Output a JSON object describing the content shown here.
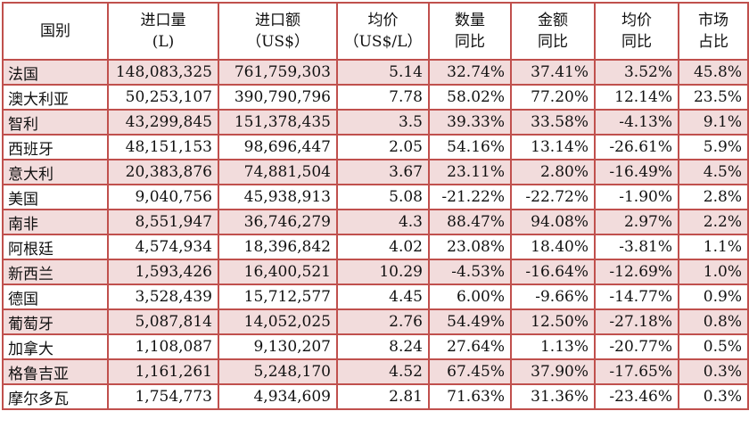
{
  "headers": [
    {
      "line1": "国别",
      "line2": ""
    },
    {
      "line1": "进口量",
      "line2": "(L)"
    },
    {
      "line1": "进口额",
      "line2": "（US$）"
    },
    {
      "line1": "均价",
      "line2": "（US$/L）"
    },
    {
      "line1": "数量",
      "line2": "同比"
    },
    {
      "line1": "金额",
      "line2": "同比"
    },
    {
      "line1": "均价",
      "line2": "同比"
    },
    {
      "line1": "市场",
      "line2": "占比"
    }
  ],
  "rows": [
    [
      "法国",
      "148,083,325",
      "761,759,303",
      "5.14",
      "32.74%",
      "37.41%",
      "3.52%",
      "45.8%"
    ],
    [
      "澳大利亚",
      "50,253,107",
      "390,790,796",
      "7.78",
      "58.02%",
      "77.20%",
      "12.14%",
      "23.5%"
    ],
    [
      "智利",
      "43,299,845",
      "151,378,435",
      "3.5",
      "39.33%",
      "33.58%",
      "-4.13%",
      "9.1%"
    ],
    [
      "西班牙",
      "48,151,153",
      "98,696,447",
      "2.05",
      "54.16%",
      "13.14%",
      "-26.61%",
      "5.9%"
    ],
    [
      "意大利",
      "20,383,876",
      "74,881,504",
      "3.67",
      "23.11%",
      "2.80%",
      "-16.49%",
      "4.5%"
    ],
    [
      "美国",
      "9,040,756",
      "45,938,913",
      "5.08",
      "-21.22%",
      "-22.72%",
      "-1.90%",
      "2.8%"
    ],
    [
      "南非",
      "8,551,947",
      "36,746,279",
      "4.3",
      "88.47%",
      "94.08%",
      "2.97%",
      "2.2%"
    ],
    [
      "阿根廷",
      "4,574,934",
      "18,396,842",
      "4.02",
      "23.08%",
      "18.40%",
      "-3.81%",
      "1.1%"
    ],
    [
      "新西兰",
      "1,593,426",
      "16,400,521",
      "10.29",
      "-4.53%",
      "-16.64%",
      "-12.69%",
      "1.0%"
    ],
    [
      "德国",
      "3,528,439",
      "15,712,577",
      "4.45",
      "6.00%",
      "-9.66%",
      "-14.77%",
      "0.9%"
    ],
    [
      "葡萄牙",
      "5,087,814",
      "14,052,025",
      "2.76",
      "54.49%",
      "12.50%",
      "-27.18%",
      "0.8%"
    ],
    [
      "加拿大",
      "1,108,087",
      "9,130,207",
      "8.24",
      "27.64%",
      "1.13%",
      "-20.77%",
      "0.5%"
    ],
    [
      "格鲁吉亚",
      "1,161,261",
      "5,248,170",
      "4.52",
      "67.45%",
      "37.90%",
      "-17.65%",
      "0.3%"
    ],
    [
      "摩尔多瓦",
      "1,754,773",
      "4,934,609",
      "2.81",
      "71.63%",
      "31.36%",
      "-23.46%",
      "0.3%"
    ]
  ],
  "colors": {
    "border": "#c0504d",
    "shaded_row": "#f2dcdc",
    "plain_row": "#ffffff"
  }
}
